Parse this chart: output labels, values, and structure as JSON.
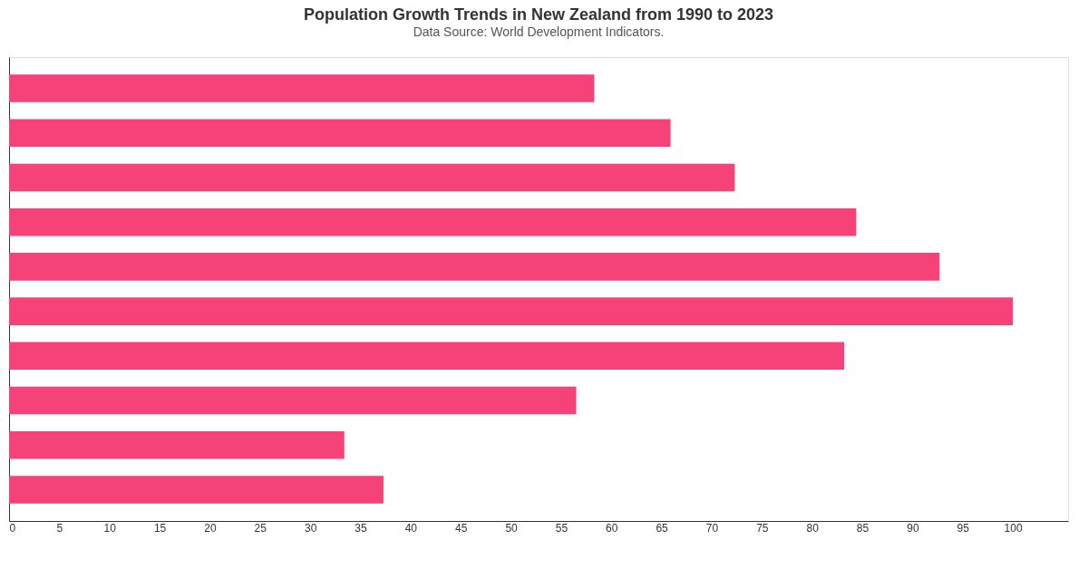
{
  "chart_data": {
    "type": "bar",
    "orientation": "horizontal",
    "title": "Population Growth Trends in New Zealand from 1990 to 2023",
    "subtitle": "Data Source: World Development Indicators.",
    "categories": [
      null,
      null,
      null,
      null,
      null,
      null,
      null,
      null,
      null,
      null
    ],
    "values": [
      58.3,
      65.9,
      72.3,
      84.4,
      92.7,
      100,
      83.2,
      56.5,
      33.4,
      37.3
    ],
    "color": "#f5437a",
    "xlim": [
      0,
      105.5
    ],
    "xticks": [
      0,
      5,
      10,
      15,
      20,
      25,
      30,
      35,
      40,
      45,
      50,
      55,
      60,
      65,
      70,
      75,
      80,
      85,
      90,
      95,
      100
    ],
    "grid": false,
    "tick_labels": "x"
  }
}
